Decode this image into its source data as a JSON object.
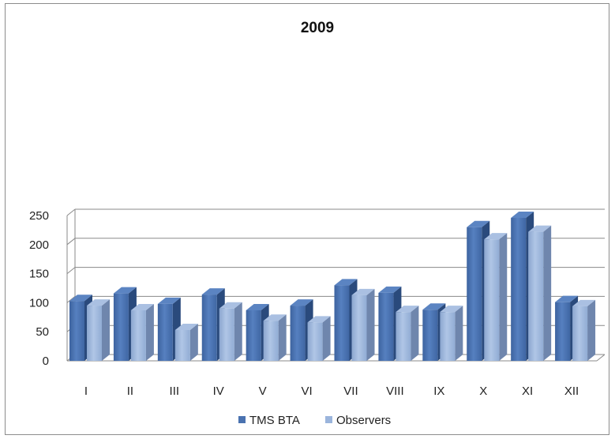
{
  "chart_data": {
    "type": "bar",
    "title": "2009",
    "categories": [
      "I",
      "II",
      "III",
      "IV",
      "V",
      "VI",
      "VII",
      "VIII",
      "IX",
      "X",
      "XI",
      "XII"
    ],
    "series": [
      {
        "name": "TMS BTA",
        "color": "#4a72b0",
        "values": [
          103,
          116,
          98,
          114,
          87,
          95,
          130,
          117,
          88,
          230,
          246,
          101
        ]
      },
      {
        "name": "Observers",
        "color": "#9bb5dc",
        "values": [
          95,
          87,
          53,
          90,
          69,
          66,
          113,
          84,
          84,
          209,
          222,
          94
        ]
      }
    ],
    "y_ticks": [
      "0",
      "50",
      "100",
      "150",
      "200",
      "250"
    ],
    "ylim": [
      0,
      250
    ],
    "grid": true,
    "legend_position": "bottom"
  }
}
